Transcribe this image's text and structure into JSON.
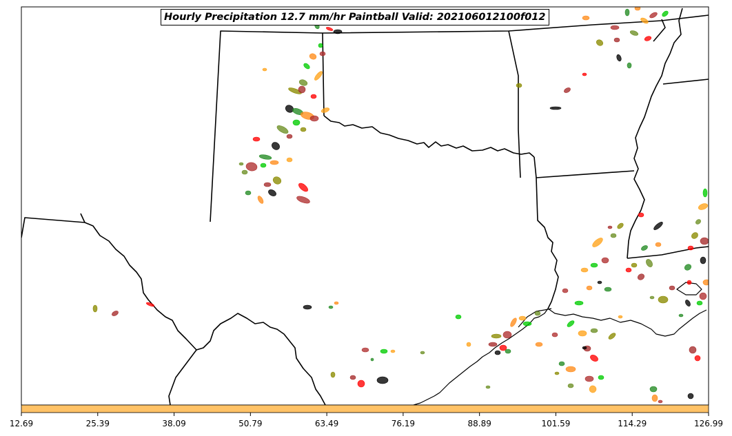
{
  "title": "Hourly Precipitation 12.7 mm/hr Paintball Valid: 202106012100f012",
  "colorbar": {
    "color": "#ffc266",
    "ticks": [
      "12.69",
      "25.39",
      "38.09",
      "50.79",
      "63.49",
      "76.19",
      "88.89",
      "101.59",
      "114.29",
      "126.99"
    ]
  },
  "member_colors": [
    "#ff0000",
    "#ff8c1a",
    "#ffa31a",
    "#a52a2a",
    "#228b22",
    "#00cc00",
    "#8b8b00",
    "#000000",
    "#b03030",
    "#6b8e23"
  ]
}
